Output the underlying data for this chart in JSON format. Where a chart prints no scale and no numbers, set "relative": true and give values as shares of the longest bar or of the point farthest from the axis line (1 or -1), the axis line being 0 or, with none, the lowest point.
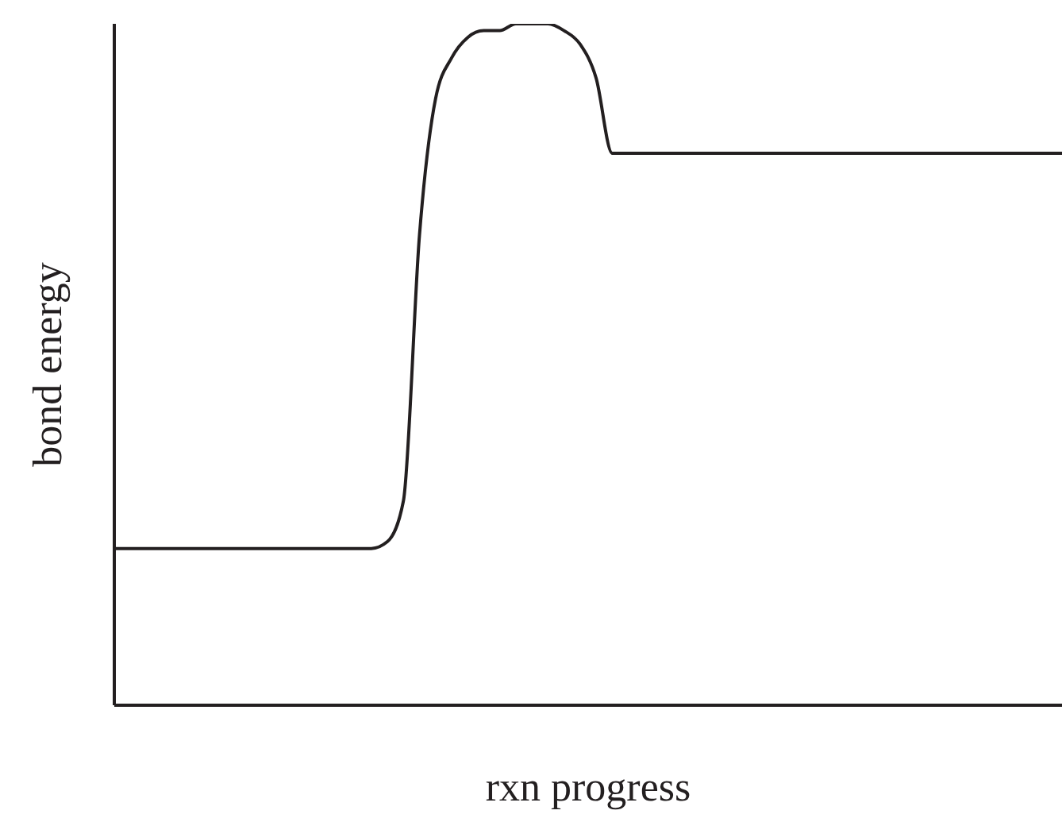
{
  "chart_data": {
    "type": "line",
    "relative": true,
    "xlabel": "rxn progress",
    "ylabel": "bond energy",
    "grid": false,
    "legend": false,
    "marker": "none",
    "line_style": "solid",
    "categories": [
      null,
      null,
      null,
      null,
      null,
      null,
      null,
      null,
      null,
      null,
      null,
      null,
      null,
      null,
      null,
      null,
      null,
      null,
      null,
      null,
      null,
      null,
      null,
      null,
      null,
      null,
      null,
      null,
      null,
      null,
      null,
      null,
      null,
      null,
      null,
      null,
      null,
      null,
      null,
      null,
      null,
      null,
      null,
      null,
      null,
      null,
      null,
      null,
      null,
      null,
      null,
      null,
      null,
      null,
      null,
      null,
      null,
      null,
      null,
      null
    ],
    "series": [
      {
        "color": "#231f20",
        "values": [
          0.23,
          0.23,
          0.23,
          0.23,
          0.23,
          0.23,
          0.23,
          0.23,
          0.23,
          0.23,
          0.23,
          0.23,
          0.23,
          0.23,
          0.23,
          0.23,
          0.23,
          0.24,
          0.3,
          0.69,
          0.89,
          0.95,
          0.98,
          0.99,
          0.99,
          1,
          1,
          1,
          0.99,
          0.97,
          0.92,
          0.81,
          0.81,
          0.81,
          0.81,
          0.81,
          0.81,
          0.81,
          0.81,
          0.81,
          0.81,
          0.81,
          0.81,
          0.81,
          0.81,
          0.81,
          0.81,
          0.81,
          0.81,
          0.81,
          0.81,
          0.81,
          0.81,
          0.81,
          0.81,
          0.81,
          0.81,
          0.81,
          0.81,
          0.81
        ]
      }
    ]
  }
}
